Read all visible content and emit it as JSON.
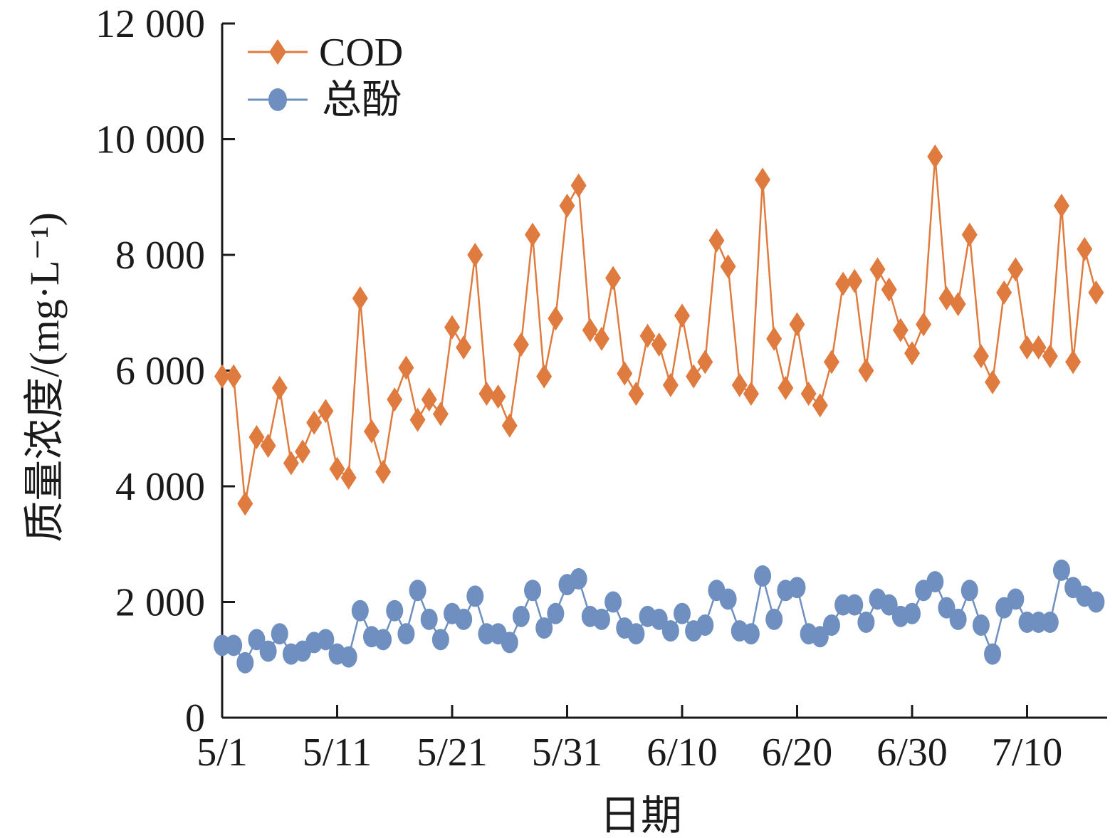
{
  "chart_data": {
    "type": "line",
    "title": "",
    "xlabel": "日期",
    "ylabel": "质量浓度/(mg·L⁻¹)",
    "ylim": [
      0,
      12000
    ],
    "y_ticks": [
      0,
      2000,
      4000,
      6000,
      8000,
      10000,
      12000
    ],
    "y_tick_labels": [
      "0",
      "2 000",
      "4 000",
      "6 000",
      "8 000",
      "10 000",
      "12 000"
    ],
    "x_ticks": [
      0,
      10,
      20,
      30,
      40,
      50,
      60,
      70
    ],
    "x_tick_labels": [
      "5/1",
      "5/11",
      "5/21",
      "5/31",
      "6/10",
      "6/20",
      "6/30",
      "7/10"
    ],
    "x_range": [
      0,
      77
    ],
    "legend_position": "top-left",
    "grid": false,
    "series": [
      {
        "name": "COD",
        "color": "#e07b3f",
        "marker": "diamond",
        "values": [
          5900,
          5900,
          3700,
          4850,
          4700,
          5700,
          4400,
          4600,
          5100,
          5300,
          4300,
          4150,
          7250,
          4950,
          4250,
          5500,
          6050,
          5150,
          5500,
          5250,
          6750,
          6400,
          8000,
          5600,
          5550,
          5050,
          6450,
          8350,
          5900,
          6900,
          8850,
          9200,
          6700,
          6550,
          7600,
          5950,
          5600,
          6600,
          6450,
          5750,
          6950,
          5900,
          6150,
          8250,
          7800,
          5750,
          5600,
          9300,
          6550,
          5700,
          6800,
          5600,
          5400,
          6150,
          7500,
          7550,
          6000,
          7750,
          7400,
          6700,
          6300,
          6800,
          9700,
          7250,
          7150,
          8350,
          6250,
          5800,
          7350,
          7750,
          6400,
          6400,
          6250,
          8850,
          6150,
          8100,
          7350
        ]
      },
      {
        "name": "总酚",
        "color": "#6e8fbf",
        "marker": "circle",
        "values": [
          1250,
          1250,
          950,
          1350,
          1150,
          1450,
          1100,
          1150,
          1300,
          1350,
          1100,
          1050,
          1850,
          1400,
          1350,
          1850,
          1450,
          2200,
          1700,
          1350,
          1800,
          1700,
          2100,
          1450,
          1450,
          1300,
          1750,
          2200,
          1550,
          1800,
          2300,
          2400,
          1750,
          1700,
          2000,
          1550,
          1450,
          1750,
          1700,
          1500,
          1800,
          1500,
          1600,
          2200,
          2050,
          1500,
          1450,
          2450,
          1700,
          2200,
          2250,
          1450,
          1400,
          1600,
          1950,
          1950,
          1650,
          2050,
          1950,
          1750,
          1800,
          2200,
          2350,
          1900,
          1700,
          2200,
          1600,
          1100,
          1900,
          2050,
          1650,
          1650,
          1650,
          2550,
          2250,
          2100,
          2000
        ]
      }
    ]
  }
}
